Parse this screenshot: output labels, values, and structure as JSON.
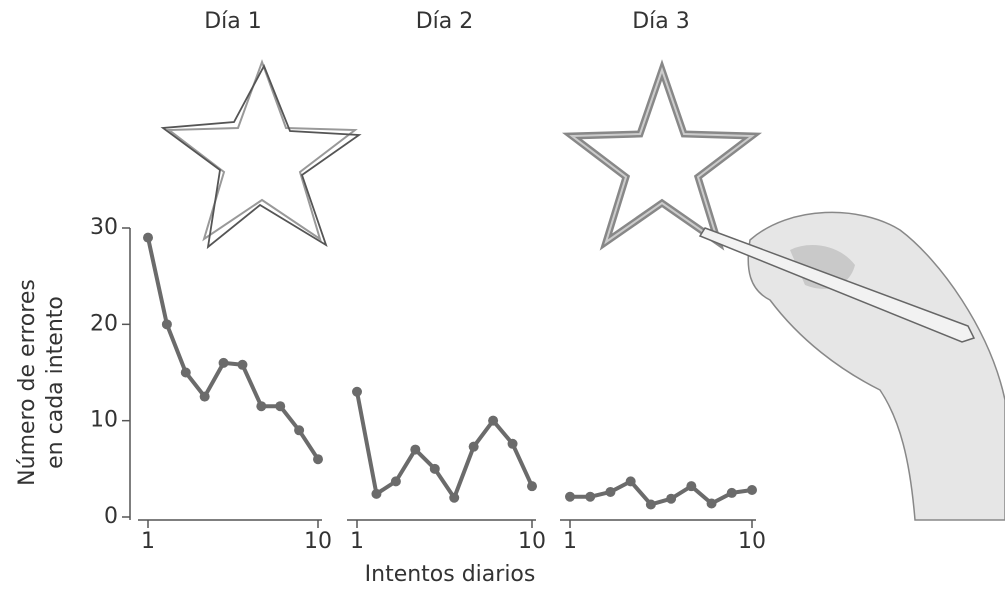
{
  "chart_data": [
    {
      "type": "line",
      "title": "Día 1",
      "ylabel": [
        "Número de errores",
        "en cada intento"
      ],
      "x": [
        1,
        2,
        3,
        4,
        5,
        6,
        7,
        8,
        9,
        10
      ],
      "values": [
        29,
        20,
        15,
        12.5,
        16,
        15.8,
        11.5,
        11.5,
        9,
        6
      ],
      "color": "#6b6b6b",
      "xlim": [
        1,
        10
      ],
      "xticks": [
        1,
        10
      ],
      "ylim": [
        0,
        30
      ],
      "yticks": [
        0,
        10,
        20,
        30
      ]
    },
    {
      "type": "line",
      "title": "Día 2",
      "xlabel": "Intentos diarios",
      "x": [
        1,
        2,
        3,
        4,
        5,
        6,
        7,
        8,
        9,
        10
      ],
      "values": [
        13,
        2.4,
        3.7,
        7,
        5,
        2,
        7.3,
        10,
        7.6,
        3.2
      ],
      "color": "#6b6b6b",
      "xlim": [
        1,
        10
      ],
      "xticks": [
        1,
        10
      ],
      "ylim": [
        0,
        30
      ]
    },
    {
      "type": "line",
      "title": "Día 3",
      "x": [
        1,
        2,
        3,
        4,
        5,
        6,
        7,
        8,
        9,
        10
      ],
      "values": [
        2.1,
        2.1,
        2.6,
        3.7,
        1.3,
        1.9,
        3.2,
        1.4,
        2.5,
        2.8
      ],
      "color": "#6b6b6b",
      "xlim": [
        1,
        10
      ],
      "xticks": [
        1,
        10
      ],
      "ylim": [
        0,
        30
      ]
    }
  ]
}
